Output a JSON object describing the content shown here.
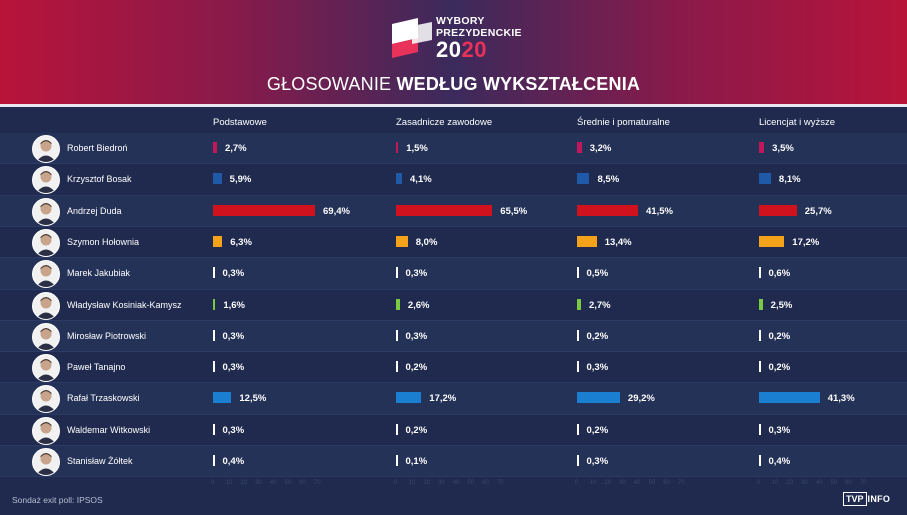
{
  "header": {
    "logo_line1": "WYBORY",
    "logo_line2": "PREZYDENCKIE",
    "logo_year_a": "20",
    "logo_year_b": "20",
    "title_light": "GŁOSOWANIE ",
    "title_bold": "WEDŁUG WYKSZTAŁCENIA"
  },
  "footer": {
    "source": "Sondaż exit poll: IPSOS",
    "brand_box": "TVP",
    "brand_text": "INFO"
  },
  "colors": {
    "Robert Biedroń": "#c2185b",
    "Krzysztof Bosak": "#1e5aa8",
    "Andrzej Duda": "#d0121f",
    "Szymon Hołownia": "#f5a21b",
    "Marek Jakubiak": "#ffffff",
    "Władysław Kosiniak-Kamysz": "#7ac943",
    "Mirosław Piotrowski": "#ffffff",
    "Paweł Tanajno": "#ffffff",
    "Rafał Trzaskowski": "#1b7fd1",
    "Waldemar Witkowski": "#ffffff",
    "Stanisław Żółtek": "#ffffff"
  },
  "chart_data": {
    "type": "bar",
    "orientation": "horizontal",
    "categories": [
      "Robert Biedroń",
      "Krzysztof Bosak",
      "Andrzej Duda",
      "Szymon Hołownia",
      "Marek Jakubiak",
      "Władysław Kosiniak-Kamysz",
      "Mirosław Piotrowski",
      "Paweł Tanajno",
      "Rafał Trzaskowski",
      "Waldemar Witkowski",
      "Stanisław Żółtek"
    ],
    "series": [
      {
        "name": "Podstawowe",
        "values": [
          2.7,
          5.9,
          69.4,
          6.3,
          0.3,
          1.6,
          0.3,
          0.3,
          12.5,
          0.3,
          0.4
        ],
        "labels": [
          "2,7%",
          "5,9%",
          "69,4%",
          "6,3%",
          "0,3%",
          "1,6%",
          "0,3%",
          "0,3%",
          "12,5%",
          "0,3%",
          "0,4%"
        ]
      },
      {
        "name": "Zasadnicze zawodowe",
        "values": [
          1.5,
          4.1,
          65.5,
          8.0,
          0.3,
          2.6,
          0.3,
          0.2,
          17.2,
          0.2,
          0.1
        ],
        "labels": [
          "1,5%",
          "4,1%",
          "65,5%",
          "8,0%",
          "0,3%",
          "2,6%",
          "0,3%",
          "0,2%",
          "17,2%",
          "0,2%",
          "0,1%"
        ]
      },
      {
        "name": "Średnie i pomaturalne",
        "values": [
          3.2,
          8.5,
          41.5,
          13.4,
          0.5,
          2.7,
          0.2,
          0.3,
          29.2,
          0.2,
          0.3
        ],
        "labels": [
          "3,2%",
          "8,5%",
          "41,5%",
          "13,4%",
          "0,5%",
          "2,7%",
          "0,2%",
          "0,3%",
          "29,2%",
          "0,2%",
          "0,3%"
        ]
      },
      {
        "name": "Licencjat i wyższe",
        "values": [
          3.5,
          8.1,
          25.7,
          17.2,
          0.6,
          2.5,
          0.2,
          0.2,
          41.3,
          0.3,
          0.4
        ],
        "labels": [
          "3,5%",
          "8,1%",
          "25,7%",
          "17,2%",
          "0,6%",
          "2,5%",
          "0,2%",
          "0,2%",
          "41,3%",
          "0,3%",
          "0,4%"
        ]
      }
    ],
    "xlim": [
      0,
      70
    ],
    "axis_ticks": [
      "0",
      "10",
      "20",
      "30",
      "40",
      "50",
      "60",
      "70"
    ],
    "title": "GŁOSOWANIE WEDŁUG WYKSZTAŁCENIA",
    "grid": false
  }
}
